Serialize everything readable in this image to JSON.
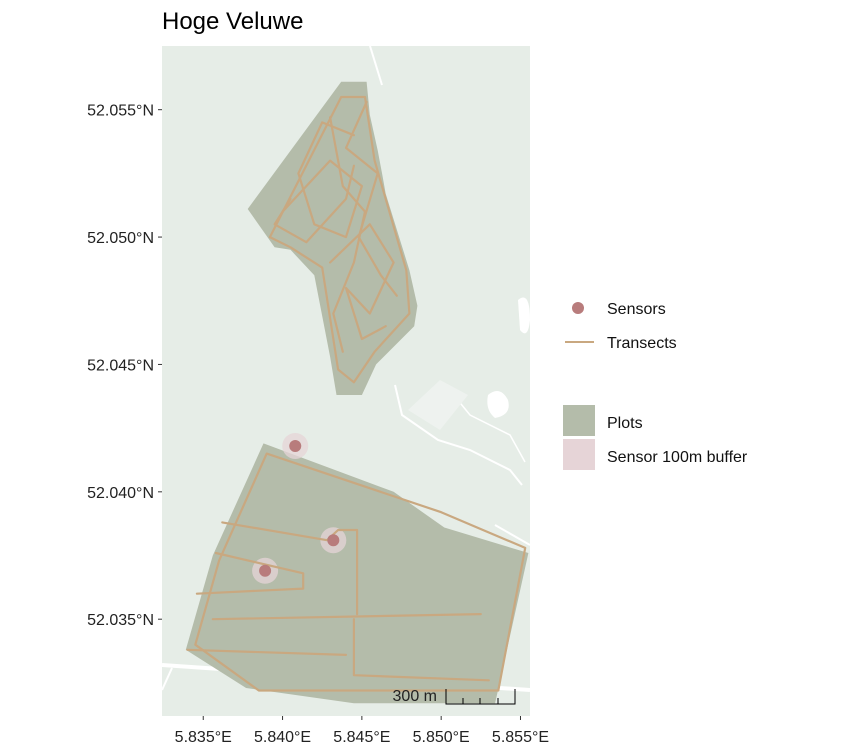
{
  "title": "Hoge Veluwe",
  "map": {
    "x_range": [
      5.8324,
      5.8556
    ],
    "y_range": [
      52.0312,
      52.0575
    ],
    "basemap_color": "#e6ede7",
    "plot_fill": "#b4bcaa",
    "transect_color": "#c9a880",
    "sensor_color": "#b87c7c",
    "buffer_color": "#e6d4d7"
  },
  "axes": {
    "x_ticks": [
      {
        "value": 5.835,
        "label": "5.835°E"
      },
      {
        "value": 5.84,
        "label": "5.840°E"
      },
      {
        "value": 5.845,
        "label": "5.845°E"
      },
      {
        "value": 5.85,
        "label": "5.850°E"
      },
      {
        "value": 5.855,
        "label": "5.855°E"
      }
    ],
    "y_ticks": [
      {
        "value": 52.035,
        "label": "52.035°N"
      },
      {
        "value": 52.04,
        "label": "52.040°N"
      },
      {
        "value": 52.045,
        "label": "52.045°N"
      },
      {
        "value": 52.05,
        "label": "52.050°N"
      },
      {
        "value": 52.055,
        "label": "52.055°N"
      }
    ]
  },
  "sensors": [
    {
      "lon": 5.8408,
      "lat": 52.0418
    },
    {
      "lon": 5.8432,
      "lat": 52.0381
    },
    {
      "lon": 5.8389,
      "lat": 52.0369
    }
  ],
  "plots": [
    {
      "coords": [
        [
          5.8378,
          52.0511
        ],
        [
          5.8437,
          52.0561
        ],
        [
          5.8453,
          52.0561
        ],
        [
          5.8455,
          52.0548
        ],
        [
          5.846,
          52.0534
        ],
        [
          5.8463,
          52.0524
        ],
        [
          5.8465,
          52.0517
        ],
        [
          5.848,
          52.0487
        ],
        [
          5.8485,
          52.0473
        ],
        [
          5.8483,
          52.0465
        ],
        [
          5.8459,
          52.045
        ],
        [
          5.845,
          52.0438
        ],
        [
          5.8434,
          52.0438
        ],
        [
          5.843,
          52.0453
        ],
        [
          5.842,
          52.0485
        ],
        [
          5.8405,
          52.0495
        ],
        [
          5.8395,
          52.0496
        ]
      ]
    },
    {
      "coords": [
        [
          5.8388,
          52.0419
        ],
        [
          5.847,
          52.04
        ],
        [
          5.8502,
          52.0386
        ],
        [
          5.8555,
          52.0376
        ],
        [
          5.8534,
          52.0317
        ],
        [
          5.8445,
          52.0317
        ],
        [
          5.8377,
          52.0323
        ],
        [
          5.8339,
          52.0338
        ],
        [
          5.8356,
          52.0375
        ]
      ]
    }
  ],
  "transects": [
    [
      [
        5.839,
        52.0415
      ],
      [
        5.85,
        52.0392
      ],
      [
        5.8553,
        52.0378
      ],
      [
        5.8536,
        52.0322
      ],
      [
        5.8385,
        52.0322
      ],
      [
        5.8345,
        52.034
      ],
      [
        5.836,
        52.0373
      ],
      [
        5.839,
        52.0415
      ]
    ],
    [
      [
        5.8362,
        52.0388
      ],
      [
        5.8428,
        52.0381
      ],
      [
        5.8435,
        52.0385
      ],
      [
        5.8447,
        52.0385
      ],
      [
        5.8447,
        52.0352
      ]
    ],
    [
      [
        5.8358,
        52.0376
      ],
      [
        5.8413,
        52.0368
      ],
      [
        5.8413,
        52.0362
      ],
      [
        5.8346,
        52.036
      ]
    ],
    [
      [
        5.8356,
        52.035
      ],
      [
        5.8525,
        52.0352
      ]
    ],
    [
      [
        5.8445,
        52.035
      ],
      [
        5.8445,
        52.0328
      ],
      [
        5.853,
        52.0326
      ]
    ],
    [
      [
        5.834,
        52.0338
      ],
      [
        5.844,
        52.0336
      ]
    ],
    [
      [
        5.8392,
        52.05
      ],
      [
        5.8437,
        52.0555
      ],
      [
        5.8452,
        52.0555
      ],
      [
        5.8458,
        52.053
      ],
      [
        5.8478,
        52.0487
      ],
      [
        5.848,
        52.047
      ],
      [
        5.8458,
        52.0455
      ],
      [
        5.8445,
        52.0443
      ],
      [
        5.8435,
        52.0448
      ],
      [
        5.8425,
        52.0488
      ],
      [
        5.8405,
        52.0496
      ],
      [
        5.8392,
        52.05
      ]
    ],
    [
      [
        5.84,
        52.051
      ],
      [
        5.843,
        52.053
      ],
      [
        5.845,
        52.052
      ],
      [
        5.844,
        52.05
      ],
      [
        5.842,
        52.0505
      ],
      [
        5.841,
        52.0525
      ],
      [
        5.8425,
        52.0545
      ],
      [
        5.8445,
        52.054
      ]
    ],
    [
      [
        5.843,
        52.049
      ],
      [
        5.8455,
        52.0505
      ],
      [
        5.847,
        52.049
      ],
      [
        5.8455,
        52.047
      ],
      [
        5.844,
        52.048
      ],
      [
        5.845,
        52.046
      ],
      [
        5.8465,
        52.0465
      ]
    ],
    [
      [
        5.8405,
        52.0515
      ],
      [
        5.8395,
        52.0505
      ],
      [
        5.8415,
        52.0498
      ],
      [
        5.844,
        52.0515
      ],
      [
        5.8445,
        52.0528
      ]
    ],
    [
      [
        5.843,
        52.0547
      ],
      [
        5.8438,
        52.052
      ],
      [
        5.8452,
        52.051
      ],
      [
        5.8445,
        52.049
      ],
      [
        5.8432,
        52.047
      ],
      [
        5.8438,
        52.0455
      ]
    ],
    [
      [
        5.8453,
        52.0553
      ],
      [
        5.844,
        52.0535
      ],
      [
        5.846,
        52.0525
      ],
      [
        5.8448,
        52.05
      ],
      [
        5.8462,
        52.0485
      ],
      [
        5.8472,
        52.0477
      ]
    ]
  ],
  "scale_bar": {
    "label": "300 m",
    "length_m": 300
  },
  "legend": {
    "sensors_label": "Sensors",
    "transects_label": "Transects",
    "plots_label": "Plots",
    "buffer_label": "Sensor 100m buffer"
  }
}
